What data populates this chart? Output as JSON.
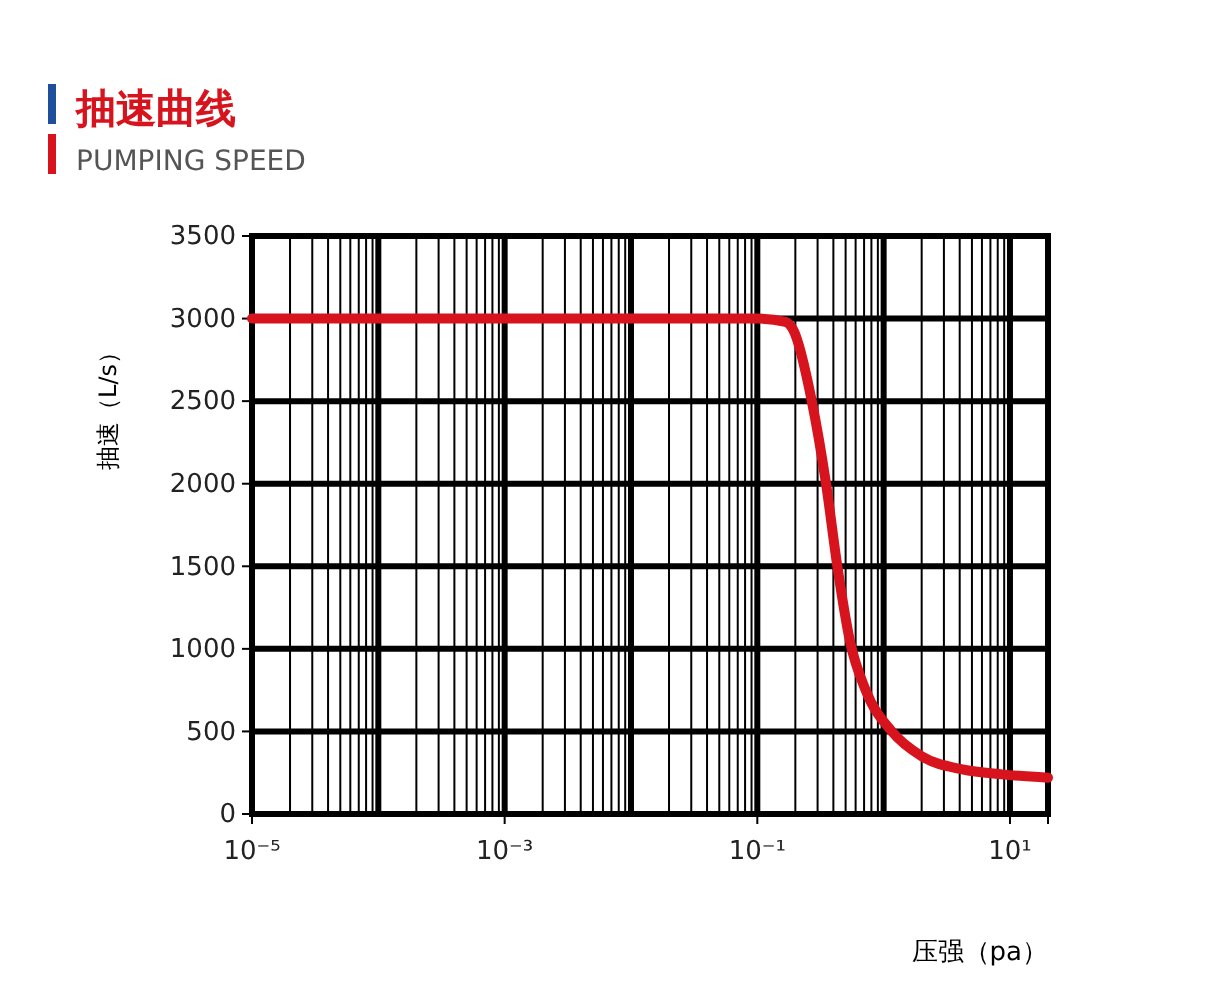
{
  "chart_data": {
    "type": "line",
    "title": "抽速曲线",
    "subtitle": "PUMPING SPEED",
    "xlabel": "压强（pa）",
    "ylabel": "抽速（L/s）",
    "log": "x",
    "x": [
      1e-05,
      0.1,
      0.167,
      0.193,
      0.27,
      0.35,
      0.43,
      0.54,
      0.72,
      1.16,
      2.0,
      4.2,
      8.7,
      20
    ],
    "series": [
      {
        "color": "#d7141e",
        "values": [
          3000,
          3000,
          2980,
          2930,
          2500,
          2000,
          1500,
          1050,
          750,
          500,
          350,
          270,
          240,
          220
        ]
      }
    ],
    "xlim": [
      1e-05,
      20
    ],
    "xticks": [
      {
        "value": 1e-05,
        "label": "10⁻⁵"
      },
      {
        "value": 0.001,
        "label": "10⁻³"
      },
      {
        "value": 0.1,
        "label": "10⁻¹"
      },
      {
        "value": 10,
        "label": "10¹"
      }
    ],
    "ylim": [
      0,
      3500
    ],
    "yticks": [
      0,
      500,
      1000,
      1500,
      2000,
      2500,
      3000,
      3500
    ],
    "grid": true,
    "line_style": "solid",
    "marker": "none"
  }
}
